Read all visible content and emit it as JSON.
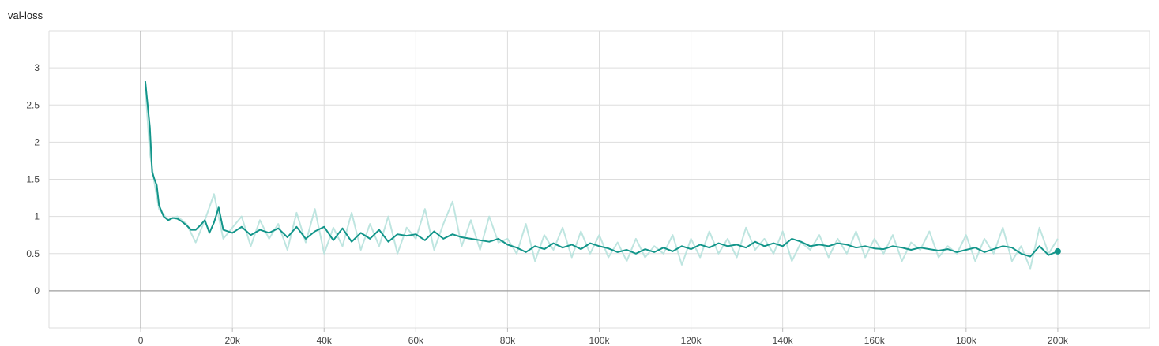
{
  "chart_title": "val-loss",
  "colors": {
    "smoothed": "#12958a",
    "raw": "#b7e2dd",
    "grid": "#dddddd",
    "zero_axis": "#9e9e9e",
    "tick_text": "#444444"
  },
  "chart_data": {
    "type": "line",
    "title": "val-loss",
    "xlabel": "",
    "ylabel": "",
    "xlim": [
      -20000,
      220000
    ],
    "ylim": [
      -0.5,
      3.5
    ],
    "grid": true,
    "x_ticks": [
      0,
      20000,
      40000,
      60000,
      80000,
      100000,
      120000,
      140000,
      160000,
      180000,
      200000
    ],
    "x_tick_labels": [
      "0",
      "20k",
      "40k",
      "60k",
      "80k",
      "100k",
      "120k",
      "140k",
      "160k",
      "180k",
      "200k"
    ],
    "y_ticks": [
      0,
      0.5,
      1,
      1.5,
      2,
      2.5,
      3
    ],
    "y_tick_labels": [
      "0",
      "0.5",
      "1",
      "1.5",
      "2",
      "2.5",
      "3"
    ],
    "series": [
      {
        "style": "raw",
        "x": [
          1000,
          2000,
          3000,
          4000,
          6000,
          8000,
          10000,
          12000,
          14000,
          16000,
          18000,
          20000,
          22000,
          24000,
          26000,
          28000,
          30000,
          32000,
          34000,
          36000,
          38000,
          40000,
          42000,
          44000,
          46000,
          48000,
          50000,
          52000,
          54000,
          56000,
          58000,
          60000,
          62000,
          64000,
          66000,
          68000,
          70000,
          72000,
          74000,
          76000,
          78000,
          80000,
          82000,
          84000,
          86000,
          88000,
          90000,
          92000,
          94000,
          96000,
          98000,
          100000,
          102000,
          104000,
          106000,
          108000,
          110000,
          112000,
          114000,
          116000,
          118000,
          120000,
          122000,
          124000,
          126000,
          128000,
          130000,
          132000,
          134000,
          136000,
          138000,
          140000,
          142000,
          144000,
          146000,
          148000,
          150000,
          152000,
          154000,
          156000,
          158000,
          160000,
          162000,
          164000,
          166000,
          168000,
          170000,
          172000,
          174000,
          176000,
          178000,
          180000,
          182000,
          184000,
          186000,
          188000,
          190000,
          192000,
          194000,
          196000,
          198000,
          200000
        ],
        "values": [
          2.75,
          1.85,
          1.45,
          1.1,
          0.95,
          1.0,
          0.9,
          0.65,
          0.95,
          1.3,
          0.7,
          0.85,
          1.0,
          0.6,
          0.95,
          0.7,
          0.9,
          0.55,
          1.05,
          0.65,
          1.1,
          0.5,
          0.85,
          0.6,
          1.05,
          0.55,
          0.9,
          0.6,
          1.0,
          0.5,
          0.85,
          0.7,
          1.1,
          0.55,
          0.9,
          1.2,
          0.6,
          0.95,
          0.55,
          1.0,
          0.65,
          0.7,
          0.5,
          0.9,
          0.4,
          0.75,
          0.55,
          0.85,
          0.45,
          0.8,
          0.5,
          0.75,
          0.45,
          0.65,
          0.4,
          0.7,
          0.45,
          0.6,
          0.5,
          0.75,
          0.35,
          0.7,
          0.45,
          0.8,
          0.5,
          0.7,
          0.45,
          0.85,
          0.55,
          0.7,
          0.5,
          0.8,
          0.4,
          0.65,
          0.55,
          0.75,
          0.45,
          0.7,
          0.5,
          0.8,
          0.45,
          0.7,
          0.5,
          0.75,
          0.4,
          0.65,
          0.55,
          0.8,
          0.45,
          0.6,
          0.5,
          0.75,
          0.4,
          0.7,
          0.5,
          0.85,
          0.4,
          0.6,
          0.3,
          0.85,
          0.5,
          0.7
        ]
      },
      {
        "style": "smoothed",
        "x": [
          1000,
          2000,
          2500,
          3000,
          3500,
          4000,
          5000,
          6000,
          7000,
          8000,
          9000,
          10000,
          11000,
          12000,
          13000,
          14000,
          15000,
          16000,
          17000,
          18000,
          20000,
          22000,
          24000,
          26000,
          28000,
          30000,
          32000,
          34000,
          36000,
          38000,
          40000,
          42000,
          44000,
          46000,
          48000,
          50000,
          52000,
          54000,
          56000,
          58000,
          60000,
          62000,
          64000,
          66000,
          68000,
          70000,
          72000,
          74000,
          76000,
          78000,
          80000,
          82000,
          84000,
          86000,
          88000,
          90000,
          92000,
          94000,
          96000,
          98000,
          100000,
          102000,
          104000,
          106000,
          108000,
          110000,
          112000,
          114000,
          116000,
          118000,
          120000,
          122000,
          124000,
          126000,
          128000,
          130000,
          132000,
          134000,
          136000,
          138000,
          140000,
          142000,
          144000,
          146000,
          148000,
          150000,
          152000,
          154000,
          156000,
          158000,
          160000,
          162000,
          164000,
          166000,
          168000,
          170000,
          172000,
          174000,
          176000,
          178000,
          180000,
          182000,
          184000,
          186000,
          188000,
          190000,
          192000,
          194000,
          196000,
          198000,
          200000
        ],
        "values": [
          2.82,
          2.2,
          1.6,
          1.5,
          1.42,
          1.15,
          1.0,
          0.95,
          0.98,
          0.97,
          0.93,
          0.88,
          0.82,
          0.82,
          0.88,
          0.95,
          0.78,
          0.92,
          1.12,
          0.82,
          0.78,
          0.86,
          0.75,
          0.82,
          0.78,
          0.84,
          0.72,
          0.86,
          0.7,
          0.8,
          0.86,
          0.68,
          0.84,
          0.66,
          0.78,
          0.7,
          0.82,
          0.66,
          0.76,
          0.74,
          0.76,
          0.68,
          0.8,
          0.7,
          0.76,
          0.72,
          0.7,
          0.68,
          0.66,
          0.7,
          0.62,
          0.58,
          0.52,
          0.6,
          0.56,
          0.64,
          0.58,
          0.62,
          0.56,
          0.64,
          0.6,
          0.57,
          0.52,
          0.55,
          0.5,
          0.56,
          0.52,
          0.58,
          0.53,
          0.6,
          0.56,
          0.62,
          0.58,
          0.64,
          0.6,
          0.62,
          0.58,
          0.66,
          0.6,
          0.64,
          0.6,
          0.7,
          0.66,
          0.6,
          0.62,
          0.6,
          0.64,
          0.62,
          0.58,
          0.6,
          0.57,
          0.56,
          0.6,
          0.58,
          0.55,
          0.58,
          0.56,
          0.54,
          0.56,
          0.52,
          0.55,
          0.58,
          0.52,
          0.56,
          0.6,
          0.58,
          0.5,
          0.46,
          0.6,
          0.48,
          0.53
        ]
      }
    ]
  }
}
